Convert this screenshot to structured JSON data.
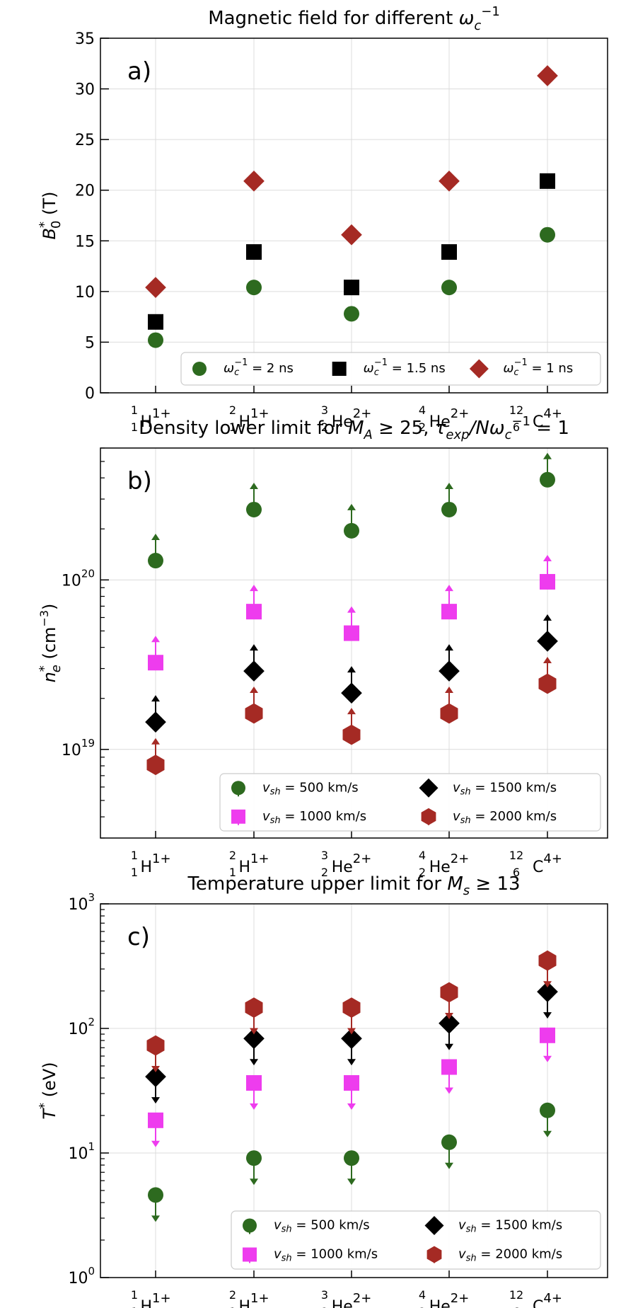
{
  "colors": {
    "green": "#2d6a1f",
    "black": "#000000",
    "red": "#a52a24",
    "magenta": "#ee3cee",
    "grid": "#dcdcdc"
  },
  "categories": [
    {
      "sup": "1",
      "sub": "1",
      "el": "H",
      "charge": "1+"
    },
    {
      "sup": "2",
      "sub": "1",
      "el": "H",
      "charge": "1+"
    },
    {
      "sup": "3",
      "sub": "2",
      "el": "He",
      "charge": "2+"
    },
    {
      "sup": "4",
      "sub": "2",
      "el": "He",
      "charge": "2+"
    },
    {
      "sup": "12",
      "sub": "6",
      "el": "C",
      "charge": "4+"
    }
  ],
  "chart_data": [
    {
      "type": "scatter",
      "panel": "a)",
      "title": "Magnetic field for different ω_c^-1",
      "ylabel": "B_0^* (T)",
      "yscale": "linear",
      "ylim": [
        0,
        35
      ],
      "yticks": [
        0,
        5,
        10,
        15,
        20,
        25,
        30,
        35
      ],
      "legend_position": "lower-right",
      "series": [
        {
          "name": "ω_c^-1 = 2 ns",
          "marker": "circle",
          "color": "green",
          "values": [
            5.2,
            10.4,
            7.8,
            10.4,
            15.6
          ]
        },
        {
          "name": "ω_c^-1 = 1.5 ns",
          "marker": "square",
          "color": "black",
          "values": [
            7.0,
            13.9,
            10.4,
            13.9,
            20.9
          ]
        },
        {
          "name": "ω_c^-1 = 1 ns",
          "marker": "diamond",
          "color": "red",
          "values": [
            10.4,
            20.9,
            15.6,
            20.9,
            31.3
          ]
        }
      ]
    },
    {
      "type": "scatter",
      "panel": "b)",
      "title": "Density lower limit for M_A ≥ 25, τ_exp/Nω_c^-1 = 1",
      "ylabel": "n_e^* (cm^-3)",
      "yscale": "log",
      "ylim": [
        3e+18,
        6e+20
      ],
      "yticks": [
        1e+19,
        1e+20
      ],
      "ytick_labels": [
        "10^19",
        "10^20"
      ],
      "limit": "lower",
      "legend_position": "lower-right",
      "series": [
        {
          "name": "v_sh = 500 km/s",
          "marker": "circle",
          "color": "green",
          "values": [
            1.3e+20,
            2.6e+20,
            1.95e+20,
            2.6e+20,
            3.9e+20
          ]
        },
        {
          "name": "v_sh = 1500 km/s",
          "marker": "diamond",
          "color": "black",
          "values": [
            1.45e+19,
            2.9e+19,
            2.15e+19,
            2.9e+19,
            4.35e+19
          ]
        },
        {
          "name": "v_sh = 1000 km/s",
          "marker": "square",
          "color": "magenta",
          "values": [
            3.25e+19,
            6.5e+19,
            4.85e+19,
            6.5e+19,
            9.75e+19
          ]
        },
        {
          "name": "v_sh = 2000 km/s",
          "marker": "hexagon",
          "color": "red",
          "values": [
            8.1e+18,
            1.63e+19,
            1.22e+19,
            1.63e+19,
            2.44e+19
          ]
        }
      ]
    },
    {
      "type": "scatter",
      "panel": "c)",
      "title": "Temperature upper limit for M_s ≥ 13",
      "ylabel": "T^* (eV)",
      "yscale": "log",
      "ylim": [
        1,
        1000
      ],
      "yticks": [
        1,
        10,
        100,
        1000
      ],
      "ytick_labels": [
        "10^0",
        "10^1",
        "10^2",
        "10^3"
      ],
      "limit": "upper",
      "legend_position": "lower-right",
      "series": [
        {
          "name": "v_sh = 500 km/s",
          "marker": "circle",
          "color": "green",
          "values": [
            4.6,
            9.1,
            9.1,
            12.2,
            22
          ]
        },
        {
          "name": "v_sh = 1500 km/s",
          "marker": "diamond",
          "color": "black",
          "values": [
            41,
            83,
            83,
            110,
            197
          ]
        },
        {
          "name": "v_sh = 1000 km/s",
          "marker": "square",
          "color": "magenta",
          "values": [
            18.3,
            36.5,
            36.5,
            49,
            88
          ]
        },
        {
          "name": "v_sh = 2000 km/s",
          "marker": "hexagon",
          "color": "red",
          "values": [
            73,
            147,
            147,
            195,
            350
          ]
        }
      ]
    }
  ]
}
